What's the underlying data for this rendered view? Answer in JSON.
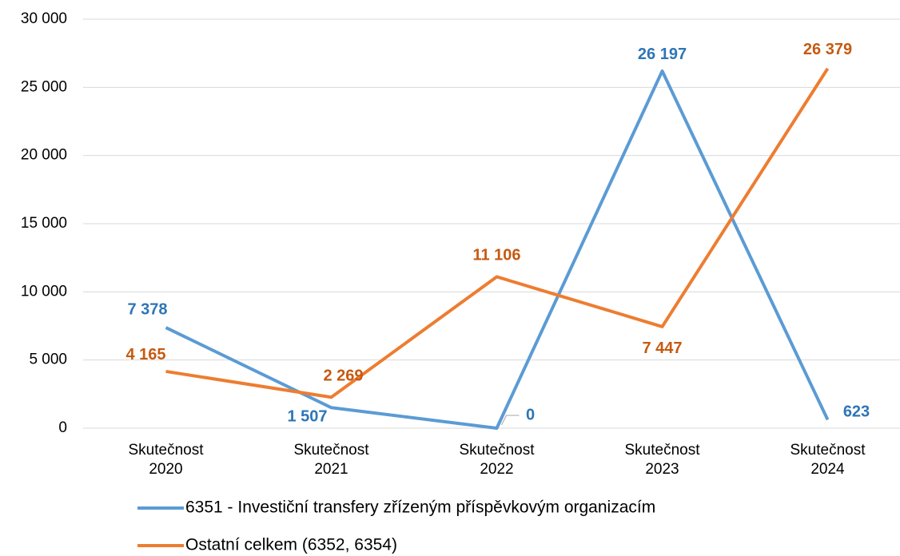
{
  "chart_data": {
    "type": "line",
    "categories": [
      "Skutečnost 2020",
      "Skutečnost 2021",
      "Skutečnost 2022",
      "Skutečnost 2023",
      "Skutečnost 2024"
    ],
    "series": [
      {
        "name": "6351 - Investiční transfery zřízeným příspěvkovým organizacím",
        "color": "#5b9bd5",
        "label_color": "#2e75b6",
        "values": [
          7378,
          1507,
          0,
          26197,
          623
        ],
        "value_labels": [
          "7 378",
          "1 507",
          "0",
          "26 197",
          "623"
        ]
      },
      {
        "name": "Ostatní celkem (6352, 6354)",
        "color": "#ed7d31",
        "label_color": "#c55a11",
        "values": [
          4165,
          2269,
          11106,
          7447,
          26379
        ],
        "value_labels": [
          "4 165",
          "2 269",
          "11 106",
          "7 447",
          "26 379"
        ]
      }
    ],
    "ylim": [
      0,
      30000
    ],
    "yticks": [
      {
        "value": 0,
        "label": "0"
      },
      {
        "value": 5000,
        "label": "5 000"
      },
      {
        "value": 10000,
        "label": "10 000"
      },
      {
        "value": 15000,
        "label": "15 000"
      },
      {
        "value": 20000,
        "label": "20 000"
      },
      {
        "value": 25000,
        "label": "25 000"
      },
      {
        "value": 30000,
        "label": "30 000"
      }
    ],
    "grid": true,
    "legend": "bottom"
  }
}
